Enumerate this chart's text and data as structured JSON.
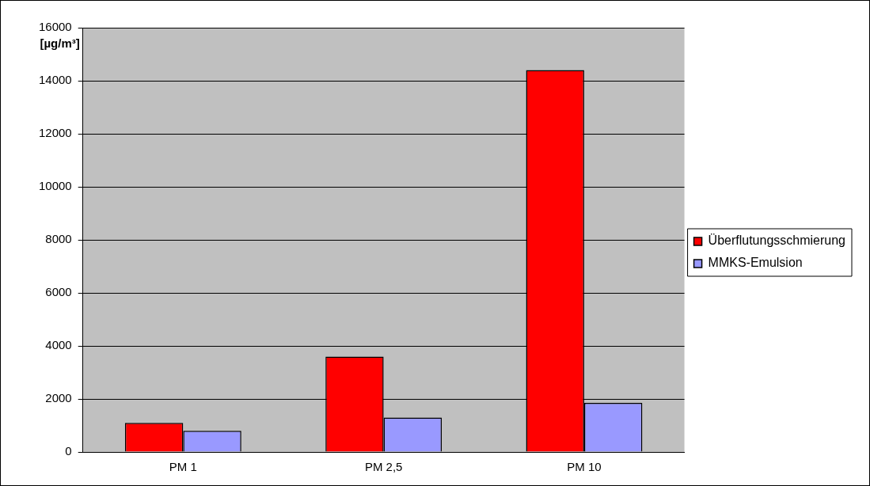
{
  "chart_data": {
    "type": "bar",
    "ylabel": "[µg/m³]",
    "categories": [
      "PM 1",
      "PM 2,5",
      "PM 10"
    ],
    "series": [
      {
        "name": "Überflutungsschmierung",
        "color": "#ff0000",
        "values": [
          1100,
          3600,
          14400
        ]
      },
      {
        "name": "MMKS-Emulsion",
        "color": "#9999ff",
        "values": [
          800,
          1300,
          1850
        ]
      }
    ],
    "ylim": [
      0,
      16000
    ],
    "yticks": [
      0,
      2000,
      4000,
      6000,
      8000,
      10000,
      12000,
      14000,
      16000
    ],
    "grid": "y",
    "legend": "right"
  }
}
